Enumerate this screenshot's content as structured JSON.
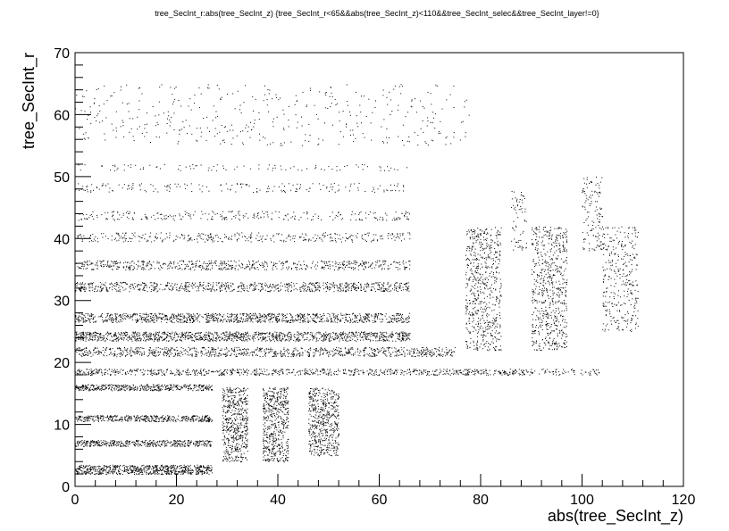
{
  "chart_data": {
    "type": "scatter",
    "title": "tree_SecInt_r:abs(tree_SecInt_z) {tree_SecInt_r<65&&abs(tree_SecInt_z)<110&&tree_SecInt_selec&&tree_SecInt_layer!=0}",
    "xlabel": "abs(tree_SecInt_z)",
    "ylabel": "tree_SecInt_r",
    "xlim": [
      0,
      120
    ],
    "ylim": [
      0,
      70
    ],
    "xticks": [
      "0",
      "20",
      "40",
      "60",
      "80",
      "100",
      "120"
    ],
    "yticks": [
      "0",
      "10",
      "20",
      "30",
      "40",
      "50",
      "60",
      "70"
    ],
    "grid": false,
    "legend": "none",
    "marker_color": "#000000",
    "point_clusters": [
      {
        "x": [
          0,
          27
        ],
        "y": [
          2,
          3.5
        ],
        "density": 1.0
      },
      {
        "x": [
          0,
          27
        ],
        "y": [
          6.5,
          7.5
        ],
        "density": 0.9
      },
      {
        "x": [
          0,
          27
        ],
        "y": [
          10.5,
          11.5
        ],
        "density": 0.9
      },
      {
        "x": [
          0,
          27
        ],
        "y": [
          15.5,
          16.5
        ],
        "density": 0.9
      },
      {
        "x": [
          0,
          90
        ],
        "y": [
          18,
          19
        ],
        "density": 0.5
      },
      {
        "x": [
          90,
          104
        ],
        "y": [
          18,
          19
        ],
        "density": 0.25
      },
      {
        "x": [
          0,
          75
        ],
        "y": [
          21,
          22.5
        ],
        "density": 0.45
      },
      {
        "x": [
          0,
          66
        ],
        "y": [
          23.5,
          25
        ],
        "density": 0.7
      },
      {
        "x": [
          0,
          66
        ],
        "y": [
          26.5,
          28
        ],
        "density": 0.6
      },
      {
        "x": [
          0,
          66
        ],
        "y": [
          31.5,
          33
        ],
        "density": 0.45
      },
      {
        "x": [
          0,
          66
        ],
        "y": [
          35,
          36.5
        ],
        "density": 0.35
      },
      {
        "x": [
          0,
          66
        ],
        "y": [
          39.5,
          41
        ],
        "density": 0.2
      },
      {
        "x": [
          0,
          66
        ],
        "y": [
          43,
          44.5
        ],
        "density": 0.15
      },
      {
        "x": [
          0,
          66
        ],
        "y": [
          47.5,
          49
        ],
        "density": 0.1
      },
      {
        "x": [
          0,
          66
        ],
        "y": [
          51,
          52
        ],
        "density": 0.08
      },
      {
        "x": [
          0,
          78
        ],
        "y": [
          55,
          65
        ],
        "density": 0.03
      },
      {
        "x": [
          29,
          34
        ],
        "y": [
          4,
          16
        ],
        "density": 0.5
      },
      {
        "x": [
          37,
          42
        ],
        "y": [
          4,
          16
        ],
        "density": 0.5
      },
      {
        "x": [
          46,
          52
        ],
        "y": [
          5,
          16
        ],
        "density": 0.45
      },
      {
        "x": [
          77,
          84
        ],
        "y": [
          22,
          42
        ],
        "density": 0.25
      },
      {
        "x": [
          86,
          89
        ],
        "y": [
          38,
          48
        ],
        "density": 0.12
      },
      {
        "x": [
          90,
          97
        ],
        "y": [
          22,
          42
        ],
        "density": 0.25
      },
      {
        "x": [
          100,
          104
        ],
        "y": [
          38,
          50
        ],
        "density": 0.15
      },
      {
        "x": [
          104,
          111
        ],
        "y": [
          25,
          42
        ],
        "density": 0.15
      }
    ]
  }
}
